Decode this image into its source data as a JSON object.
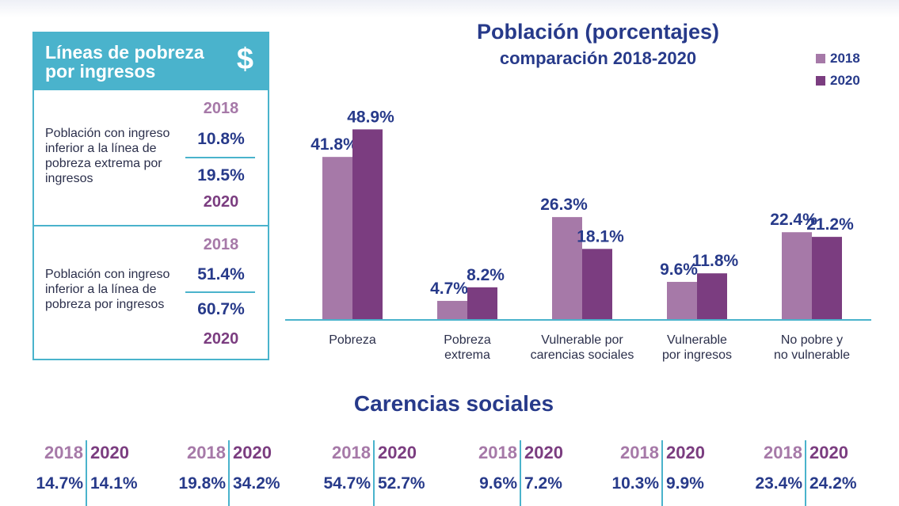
{
  "panel": {
    "title": "Líneas de pobreza por ingresos",
    "icon": "dollar-icon",
    "icon_glyph": "$",
    "sections": [
      {
        "description": "Población con ingreso inferior a la línea de pobreza extrema por ingresos",
        "year_2018": "2018",
        "value_2018": "10.8%",
        "value_2020": "19.5%",
        "year_2020": "2020"
      },
      {
        "description": "Población con ingreso inferior a la línea de pobreza por ingresos",
        "year_2018": "2018",
        "value_2018": "51.4%",
        "value_2020": "60.7%",
        "year_2020": "2020"
      }
    ]
  },
  "colors": {
    "accent": "#4ab3cc",
    "title_blue": "#273a8a",
    "series_2018": "#a679a8",
    "series_2020": "#7b3d80"
  },
  "chart_data": {
    "type": "bar",
    "title": "Población (porcentajes)",
    "subtitle": "comparación 2018-2020",
    "categories": [
      "Pobreza",
      "Pobreza extrema",
      "Vulnerable por carencias sociales",
      "Vulnerable por ingresos",
      "No pobre y no vulnerable"
    ],
    "category_lines": [
      [
        "Pobreza"
      ],
      [
        "Pobreza",
        "extrema"
      ],
      [
        "Vulnerable por",
        "carencias sociales"
      ],
      [
        "Vulnerable",
        "por ingresos"
      ],
      [
        "No pobre y",
        "no vulnerable"
      ]
    ],
    "series": [
      {
        "name": "2018",
        "values": [
          41.8,
          4.7,
          26.3,
          9.6,
          22.4
        ],
        "labels": [
          "41.8%",
          "4.7%",
          "26.3%",
          "9.6%",
          "22.4%"
        ]
      },
      {
        "name": "2020",
        "values": [
          48.9,
          8.2,
          18.1,
          11.8,
          21.2
        ],
        "labels": [
          "48.9%",
          "8.2%",
          "18.1%",
          "11.8%",
          "21.2%"
        ]
      }
    ],
    "ylim": [
      0,
      50
    ],
    "grid": false,
    "legend_position": "top-right"
  },
  "carencias": {
    "title": "Carencias sociales",
    "groups": [
      {
        "year_2018": "2018",
        "year_2020": "2020",
        "value_2018": "14.7%",
        "value_2020": "14.1%"
      },
      {
        "year_2018": "2018",
        "year_2020": "2020",
        "value_2018": "19.8%",
        "value_2020": "34.2%"
      },
      {
        "year_2018": "2018",
        "year_2020": "2020",
        "value_2018": "54.7%",
        "value_2020": "52.7%"
      },
      {
        "year_2018": "2018",
        "year_2020": "2020",
        "value_2018": "9.6%",
        "value_2020": "7.2%"
      },
      {
        "year_2018": "2018",
        "year_2020": "2020",
        "value_2018": "10.3%",
        "value_2020": "9.9%"
      },
      {
        "year_2018": "2018",
        "year_2020": "2020",
        "value_2018": "23.4%",
        "value_2020": "24.2%"
      }
    ]
  }
}
